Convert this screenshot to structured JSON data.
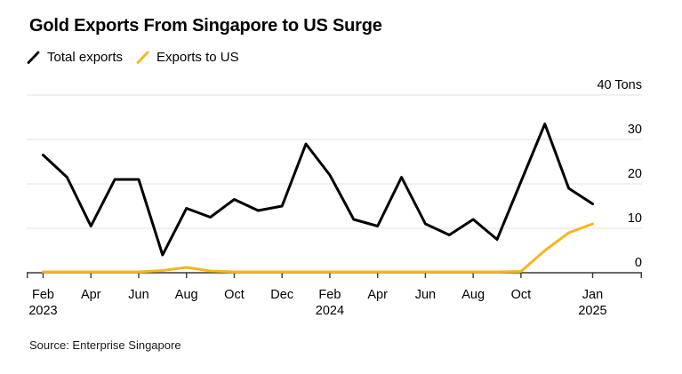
{
  "title": "Gold Exports From Singapore to US Surge",
  "legend": [
    {
      "label": "Total exports",
      "color": "#000000"
    },
    {
      "label": "Exports to US",
      "color": "#F8B51D"
    }
  ],
  "source": "Source: Enterprise Singapore",
  "chart_data": {
    "type": "line",
    "title": "Gold Exports From Singapore to US Surge",
    "unit": "Tons",
    "ylim": [
      0,
      40
    ],
    "y_tick_values": [
      0,
      10,
      20,
      30,
      40
    ],
    "y_tick_labels": [
      "0",
      "10",
      "20",
      "30",
      "40 Tons"
    ],
    "grid": "horizontal",
    "legend_position": "top-left",
    "grid_color": "#e2e2e2",
    "axis_color": "#383838",
    "x": [
      "Feb 2023",
      "Mar 2023",
      "Apr 2023",
      "May 2023",
      "Jun 2023",
      "Jul 2023",
      "Aug 2023",
      "Sep 2023",
      "Oct 2023",
      "Nov 2023",
      "Dec 2023",
      "Jan 2024",
      "Feb 2024",
      "Mar 2024",
      "Apr 2024",
      "May 2024",
      "Jun 2024",
      "Jul 2024",
      "Aug 2024",
      "Sep 2024",
      "Oct 2024",
      "Nov 2024",
      "Dec 2024",
      "Jan 2025"
    ],
    "x_ticks": [
      {
        "index": 0,
        "line1": "Feb",
        "line2": "2023"
      },
      {
        "index": 2,
        "line1": "Apr"
      },
      {
        "index": 4,
        "line1": "Jun"
      },
      {
        "index": 6,
        "line1": "Aug"
      },
      {
        "index": 8,
        "line1": "Oct"
      },
      {
        "index": 10,
        "line1": "Dec"
      },
      {
        "index": 12,
        "line1": "Feb",
        "line2": "2024"
      },
      {
        "index": 14,
        "line1": "Apr"
      },
      {
        "index": 16,
        "line1": "Jun"
      },
      {
        "index": 18,
        "line1": "Aug"
      },
      {
        "index": 20,
        "line1": "Oct"
      },
      {
        "index": 23,
        "line1": "Jan",
        "line2": "2025"
      }
    ],
    "series": [
      {
        "name": "Total exports",
        "color": "#000000",
        "values": [
          26.5,
          21.5,
          10.5,
          21,
          21,
          4,
          14.5,
          12.5,
          16.5,
          14,
          15,
          29,
          22,
          12,
          10.5,
          21.5,
          11,
          8.5,
          12,
          7.5,
          20.5,
          33.5,
          19,
          15.5
        ]
      },
      {
        "name": "Exports to US",
        "color": "#F8B51D",
        "values": [
          0.2,
          0.2,
          0.2,
          0.2,
          0.2,
          0.5,
          1.2,
          0.4,
          0.2,
          0.2,
          0.2,
          0.2,
          0.2,
          0.2,
          0.2,
          0.2,
          0.2,
          0.2,
          0.2,
          0.2,
          0.3,
          5,
          9,
          11
        ]
      }
    ]
  }
}
